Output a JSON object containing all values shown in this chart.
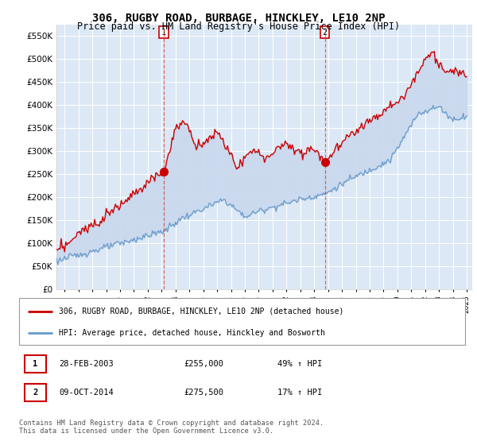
{
  "title": "306, RUGBY ROAD, BURBAGE, HINCKLEY, LE10 2NP",
  "subtitle": "Price paid vs. HM Land Registry's House Price Index (HPI)",
  "title_fontsize": 10,
  "subtitle_fontsize": 8.5,
  "background_color": "#ffffff",
  "plot_bg_color": "#dce8f5",
  "grid_color": "#ffffff",
  "ylim": [
    0,
    575000
  ],
  "yticks": [
    0,
    50000,
    100000,
    150000,
    200000,
    250000,
    300000,
    350000,
    400000,
    450000,
    500000,
    550000
  ],
  "legend_label_red": "306, RUGBY ROAD, BURBAGE, HINCKLEY, LE10 2NP (detached house)",
  "legend_label_blue": "HPI: Average price, detached house, Hinckley and Bosworth",
  "table_row1": [
    "1",
    "28-FEB-2003",
    "£255,000",
    "49% ↑ HPI"
  ],
  "table_row2": [
    "2",
    "09-OCT-2014",
    "£275,500",
    "17% ↑ HPI"
  ],
  "footer": "Contains HM Land Registry data © Crown copyright and database right 2024.\nThis data is licensed under the Open Government Licence v3.0.",
  "purchase1_date_x": 2003.16,
  "purchase1_price": 255000,
  "purchase2_date_x": 2014.77,
  "purchase2_price": 275500,
  "red_color": "#cc0000",
  "blue_color": "#6699cc",
  "fill_between_color": "#c8d8ed",
  "dashed_color": "#cc3333",
  "xlim_left": 1995.4,
  "xlim_right": 2025.4
}
